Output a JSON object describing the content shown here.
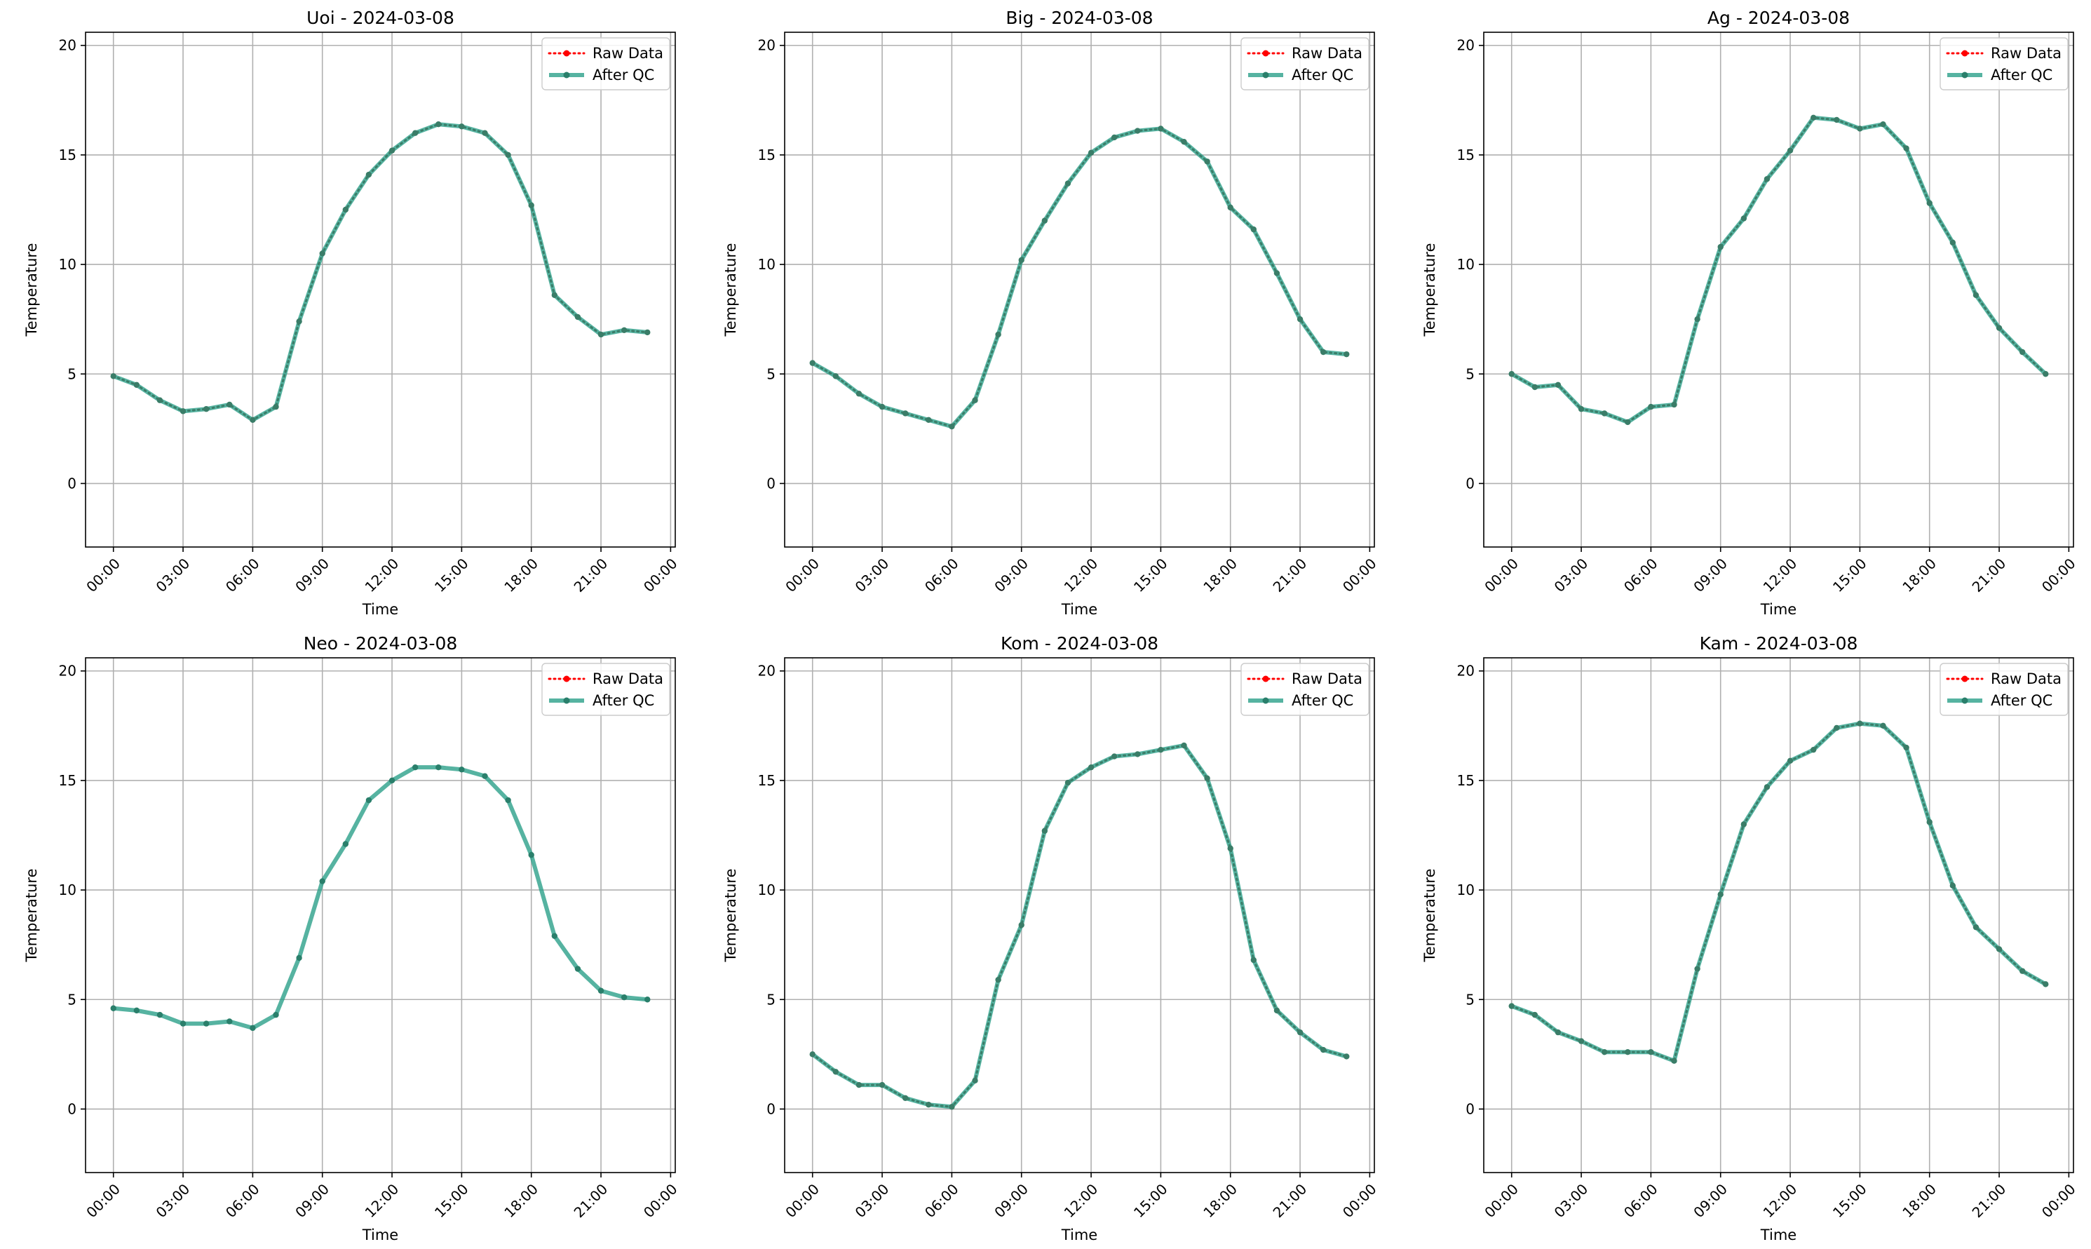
{
  "figure": {
    "background": "#ffffff"
  },
  "style": {
    "raw_color": "#ff0000",
    "qc_color": "#2ca089",
    "qc_marker_color": "#2a7f6b",
    "overlap_color": "#3a7d68",
    "grid_color": "#b0b0b0"
  },
  "chart_data": [
    {
      "type": "line",
      "title": "Uoi - 2024-03-08",
      "xlabel": "Time",
      "ylabel": "Temperature",
      "x_ticks": [
        "00:00",
        "03:00",
        "06:00",
        "09:00",
        "12:00",
        "15:00",
        "18:00",
        "21:00",
        "00:00"
      ],
      "y_ticks": [
        0,
        5,
        10,
        15,
        20
      ],
      "xlim_hours": [
        -1.2,
        24.2
      ],
      "ylim": [
        -2.9,
        20.6
      ],
      "grid": true,
      "legend": "upper right",
      "raw_visible": true,
      "series": [
        {
          "name": "Raw Data",
          "values": [
            4.9,
            4.5,
            3.8,
            3.3,
            3.4,
            3.6,
            2.9,
            3.5,
            7.4,
            10.5,
            12.5,
            14.1,
            15.2,
            16.0,
            16.4,
            16.3,
            16.0,
            15.0,
            12.7,
            8.6,
            7.6,
            6.8,
            7.0,
            6.9
          ]
        },
        {
          "name": "After QC",
          "values": [
            4.9,
            4.5,
            3.8,
            3.3,
            3.4,
            3.6,
            2.9,
            3.5,
            7.4,
            10.5,
            12.5,
            14.1,
            15.2,
            16.0,
            16.4,
            16.3,
            16.0,
            15.0,
            12.7,
            8.6,
            7.6,
            6.8,
            7.0,
            6.9
          ]
        }
      ]
    },
    {
      "type": "line",
      "title": "Big - 2024-03-08",
      "xlabel": "Time",
      "ylabel": "Temperature",
      "x_ticks": [
        "00:00",
        "03:00",
        "06:00",
        "09:00",
        "12:00",
        "15:00",
        "18:00",
        "21:00",
        "00:00"
      ],
      "y_ticks": [
        0,
        5,
        10,
        15,
        20
      ],
      "xlim_hours": [
        -1.2,
        24.2
      ],
      "ylim": [
        -2.9,
        20.6
      ],
      "grid": true,
      "legend": "upper right",
      "raw_visible": true,
      "series": [
        {
          "name": "Raw Data",
          "values": [
            5.5,
            4.9,
            4.1,
            3.5,
            3.2,
            2.9,
            2.6,
            3.8,
            6.8,
            10.2,
            12.0,
            13.7,
            15.1,
            15.8,
            16.1,
            16.2,
            15.6,
            14.7,
            12.6,
            11.6,
            9.6,
            7.5,
            6.0,
            5.9
          ]
        },
        {
          "name": "After QC",
          "values": [
            5.5,
            4.9,
            4.1,
            3.5,
            3.2,
            2.9,
            2.6,
            3.8,
            6.8,
            10.2,
            12.0,
            13.7,
            15.1,
            15.8,
            16.1,
            16.2,
            15.6,
            14.7,
            12.6,
            11.6,
            9.6,
            7.5,
            6.0,
            5.9
          ]
        }
      ]
    },
    {
      "type": "line",
      "title": "Ag - 2024-03-08",
      "xlabel": "Time",
      "ylabel": "Temperature",
      "x_ticks": [
        "00:00",
        "03:00",
        "06:00",
        "09:00",
        "12:00",
        "15:00",
        "18:00",
        "21:00",
        "00:00"
      ],
      "y_ticks": [
        0,
        5,
        10,
        15,
        20
      ],
      "xlim_hours": [
        -1.2,
        24.2
      ],
      "ylim": [
        -2.9,
        20.6
      ],
      "grid": true,
      "legend": "upper right",
      "raw_visible": true,
      "series": [
        {
          "name": "Raw Data",
          "values": [
            5.0,
            4.4,
            4.5,
            3.4,
            3.2,
            2.8,
            3.5,
            3.6,
            7.5,
            10.8,
            12.1,
            13.9,
            15.2,
            16.7,
            16.6,
            16.2,
            16.4,
            15.3,
            12.8,
            11.0,
            8.6,
            7.1,
            6.0,
            5.0
          ]
        },
        {
          "name": "After QC",
          "values": [
            5.0,
            4.4,
            4.5,
            3.4,
            3.2,
            2.8,
            3.5,
            3.6,
            7.5,
            10.8,
            12.1,
            13.9,
            15.2,
            16.7,
            16.6,
            16.2,
            16.4,
            15.3,
            12.8,
            11.0,
            8.6,
            7.1,
            6.0,
            5.0
          ]
        }
      ]
    },
    {
      "type": "line",
      "title": "Neo - 2024-03-08",
      "xlabel": "Time",
      "ylabel": "Temperature",
      "x_ticks": [
        "00:00",
        "03:00",
        "06:00",
        "09:00",
        "12:00",
        "15:00",
        "18:00",
        "21:00",
        "00:00"
      ],
      "y_ticks": [
        0,
        5,
        10,
        15,
        20
      ],
      "xlim_hours": [
        -1.2,
        24.2
      ],
      "ylim": [
        -2.9,
        20.6
      ],
      "grid": true,
      "legend": "upper right",
      "raw_visible": false,
      "series": [
        {
          "name": "Raw Data",
          "values": [
            4.6,
            4.5,
            4.3,
            3.9,
            3.9,
            4.0,
            3.7,
            4.3,
            6.9,
            10.4,
            12.1,
            14.1,
            15.0,
            15.6,
            15.6,
            15.5,
            15.2,
            14.1,
            11.6,
            7.9,
            6.4,
            5.4,
            5.1,
            5.0
          ]
        },
        {
          "name": "After QC",
          "values": [
            4.6,
            4.5,
            4.3,
            3.9,
            3.9,
            4.0,
            3.7,
            4.3,
            6.9,
            10.4,
            12.1,
            14.1,
            15.0,
            15.6,
            15.6,
            15.5,
            15.2,
            14.1,
            11.6,
            7.9,
            6.4,
            5.4,
            5.1,
            5.0
          ]
        }
      ]
    },
    {
      "type": "line",
      "title": "Kom - 2024-03-08",
      "xlabel": "Time",
      "ylabel": "Temperature",
      "x_ticks": [
        "00:00",
        "03:00",
        "06:00",
        "09:00",
        "12:00",
        "15:00",
        "18:00",
        "21:00",
        "00:00"
      ],
      "y_ticks": [
        0,
        5,
        10,
        15,
        20
      ],
      "xlim_hours": [
        -1.2,
        24.2
      ],
      "ylim": [
        -2.9,
        20.6
      ],
      "grid": true,
      "legend": "upper right",
      "raw_visible": true,
      "series": [
        {
          "name": "Raw Data",
          "values": [
            2.5,
            1.7,
            1.1,
            1.1,
            0.5,
            0.2,
            0.1,
            1.3,
            5.9,
            8.4,
            12.7,
            14.9,
            15.6,
            16.1,
            16.2,
            16.4,
            16.6,
            15.1,
            11.9,
            6.8,
            4.5,
            3.5,
            2.7,
            2.4
          ]
        },
        {
          "name": "After QC",
          "values": [
            2.5,
            1.7,
            1.1,
            1.1,
            0.5,
            0.2,
            0.1,
            1.3,
            5.9,
            8.4,
            12.7,
            14.9,
            15.6,
            16.1,
            16.2,
            16.4,
            16.6,
            15.1,
            11.9,
            6.8,
            4.5,
            3.5,
            2.7,
            2.4
          ]
        }
      ]
    },
    {
      "type": "line",
      "title": "Kam - 2024-03-08",
      "xlabel": "Time",
      "ylabel": "Temperature",
      "x_ticks": [
        "00:00",
        "03:00",
        "06:00",
        "09:00",
        "12:00",
        "15:00",
        "18:00",
        "21:00",
        "00:00"
      ],
      "y_ticks": [
        0,
        5,
        10,
        15,
        20
      ],
      "xlim_hours": [
        -1.2,
        24.2
      ],
      "ylim": [
        -2.9,
        20.6
      ],
      "grid": true,
      "legend": "upper right",
      "raw_visible": true,
      "series": [
        {
          "name": "Raw Data",
          "values": [
            4.7,
            4.3,
            3.5,
            3.1,
            2.6,
            2.6,
            2.6,
            2.2,
            6.4,
            9.8,
            13.0,
            14.7,
            15.9,
            16.4,
            17.4,
            17.6,
            17.5,
            16.5,
            13.1,
            10.2,
            8.3,
            7.3,
            6.3,
            5.7
          ]
        },
        {
          "name": "After QC",
          "values": [
            4.7,
            4.3,
            3.5,
            3.1,
            2.6,
            2.6,
            2.6,
            2.2,
            6.4,
            9.8,
            13.0,
            14.7,
            15.9,
            16.4,
            17.4,
            17.6,
            17.5,
            16.5,
            13.1,
            10.2,
            8.3,
            7.3,
            6.3,
            5.7
          ]
        }
      ]
    }
  ]
}
